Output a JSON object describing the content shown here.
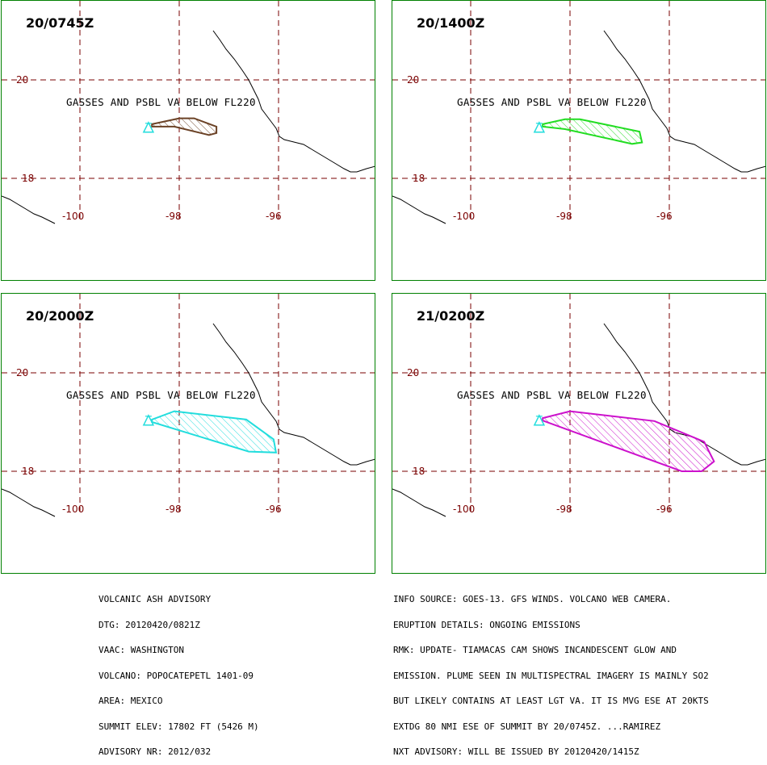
{
  "panels": [
    {
      "time": "20/0745Z",
      "va_text": "GASSES AND PSBL VA BELOW FL220",
      "color": "#6b4226",
      "cloud": [
        [
          -98.55,
          19.1
        ],
        [
          -98.0,
          19.22
        ],
        [
          -97.7,
          19.22
        ],
        [
          -97.25,
          19.05
        ],
        [
          -97.25,
          18.92
        ],
        [
          -97.4,
          18.88
        ],
        [
          -98.1,
          19.05
        ],
        [
          -98.55,
          19.05
        ]
      ]
    },
    {
      "time": "20/1400Z",
      "va_text": "GASSES AND PSBL VA BELOW FL220",
      "color": "#22dd22",
      "cloud": [
        [
          -98.55,
          19.1
        ],
        [
          -98.1,
          19.2
        ],
        [
          -97.8,
          19.2
        ],
        [
          -96.6,
          18.95
        ],
        [
          -96.55,
          18.73
        ],
        [
          -96.75,
          18.7
        ],
        [
          -98.1,
          19.0
        ],
        [
          -98.55,
          19.05
        ]
      ]
    },
    {
      "time": "20/2000Z",
      "va_text": "GASSES AND PSBL VA BELOW FL220",
      "color": "#22dddd",
      "cloud": [
        [
          -98.55,
          19.05
        ],
        [
          -98.1,
          19.22
        ],
        [
          -96.65,
          19.05
        ],
        [
          -96.1,
          18.65
        ],
        [
          -96.05,
          18.38
        ],
        [
          -96.6,
          18.4
        ],
        [
          -98.55,
          19.0
        ]
      ]
    },
    {
      "time": "21/0200Z",
      "va_text": "GASSES AND PSBL VA BELOW FL220",
      "color": "#cc11cc",
      "cloud": [
        [
          -98.55,
          19.08
        ],
        [
          -98.0,
          19.22
        ],
        [
          -96.3,
          19.02
        ],
        [
          -95.3,
          18.6
        ],
        [
          -95.1,
          18.2
        ],
        [
          -95.35,
          18.0
        ],
        [
          -95.75,
          18.0
        ],
        [
          -98.55,
          19.03
        ]
      ]
    }
  ],
  "map": {
    "lat_labels": [
      "20",
      "18"
    ],
    "lon_labels": [
      "-100",
      "-98",
      "-96"
    ],
    "latitudes": [
      20,
      18
    ],
    "longitudes": [
      -100,
      -98,
      -96
    ],
    "summit": {
      "lon": -98.62,
      "lat": 19.02
    },
    "grid_color": "#7a0000",
    "coastline_color": "#000000",
    "border_color": "#008000"
  },
  "advisory_left": [
    "VOLCANIC ASH ADVISORY",
    "DTG: 20120420/0821Z",
    "VAAC: WASHINGTON",
    "VOLCANO: POPOCATEPETL 1401-09",
    "AREA: MEXICO",
    "SUMMIT ELEV: 17802 FT (5426 M)",
    "ADVISORY NR: 2012/032"
  ],
  "advisory_right": [
    "INFO SOURCE: GOES-13. GFS WINDS. VOLCANO WEB CAMERA.",
    "ERUPTION DETAILS: ONGOING EMISSIONS",
    "RMK: UPDATE- TIAMACAS CAM SHOWS INCANDESCENT GLOW AND",
    "EMISSION. PLUME SEEN IN MULTISPECTRAL IMAGERY IS MAINLY SO2",
    "BUT LIKELY CONTAINS AT LEAST LGT VA. IT IS MVG ESE AT 20KTS",
    "EXTDG 80 NMI ESE OF SUMMIT BY 20/0745Z. ...RAMIREZ",
    "NXT ADVISORY: WILL BE ISSUED BY 20120420/1415Z"
  ]
}
